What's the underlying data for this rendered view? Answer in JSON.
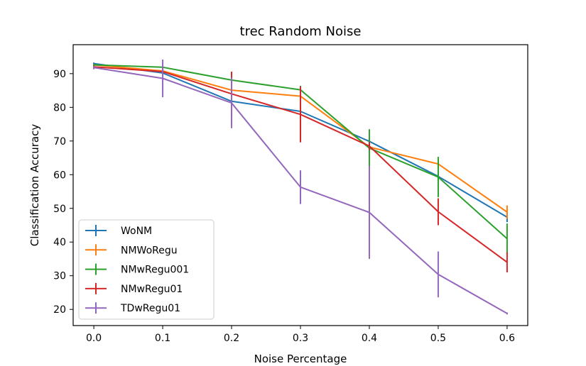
{
  "chart_data": {
    "type": "line",
    "title": "trec Random Noise",
    "xlabel": "Noise Percentage",
    "ylabel": "Classification Accuracy",
    "x": [
      0.0,
      0.1,
      0.2,
      0.3,
      0.4,
      0.5,
      0.6
    ],
    "x_tick_labels": [
      "0.0",
      "0.1",
      "0.2",
      "0.3",
      "0.4",
      "0.5",
      "0.6"
    ],
    "y_ticks": [
      20,
      30,
      40,
      50,
      60,
      70,
      80,
      90
    ],
    "xlim": [
      -0.03,
      0.63
    ],
    "ylim": [
      15.2,
      98.6
    ],
    "grid": false,
    "legend_position": "lower-left",
    "series": [
      {
        "name": "WoNM",
        "color": "#1f77b4",
        "values": [
          93.0,
          90.2,
          81.8,
          78.8,
          69.9,
          59.5,
          47.4
        ],
        "errors": [
          0.3,
          0.8,
          0.8,
          0.8,
          1.2,
          1.3,
          1.5
        ]
      },
      {
        "name": "NMWoRegu",
        "color": "#ff7f0e",
        "values": [
          92.6,
          90.8,
          85.1,
          83.3,
          68.2,
          63.2,
          48.9
        ],
        "errors": [
          0.3,
          0.5,
          0.8,
          1.4,
          1.3,
          1.6,
          2.0
        ]
      },
      {
        "name": "NMwRegu001",
        "color": "#2ca02c",
        "values": [
          92.6,
          91.9,
          88.1,
          85.2,
          67.9,
          59.3,
          41.0
        ],
        "errors": [
          0.3,
          0.5,
          0.8,
          1.2,
          5.6,
          6.0,
          4.5
        ]
      },
      {
        "name": "NMwRegu01",
        "color": "#d62728",
        "values": [
          92.0,
          90.6,
          84.0,
          77.9,
          68.5,
          49.0,
          34.0
        ],
        "errors": [
          0.4,
          0.8,
          6.6,
          8.3,
          1.2,
          4.0,
          3.0
        ]
      },
      {
        "name": "TDwRegu01",
        "color": "#9467bd",
        "values": [
          91.8,
          88.6,
          81.3,
          56.3,
          48.8,
          30.4,
          18.8
        ],
        "errors": [
          0.5,
          5.6,
          7.5,
          5.0,
          13.8,
          6.8,
          0.3
        ]
      }
    ]
  }
}
